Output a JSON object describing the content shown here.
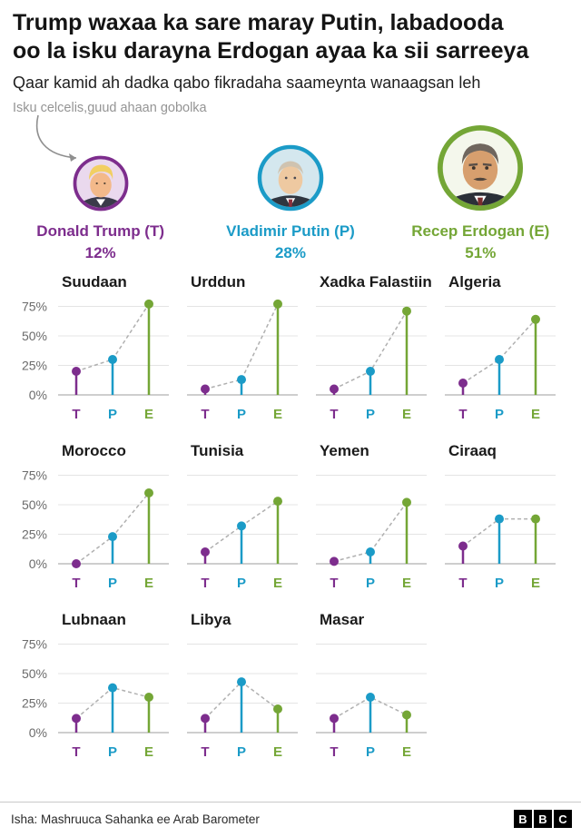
{
  "header": {
    "title_line1": "Trump waxaa ka sare maray Putin, labadooda",
    "title_line2": "oo la isku darayna Erdogan ayaa ka sii sarreeya",
    "subtitle": "Qaar kamid ah dadka qabo fikradaha saameynta wanaagsan leh",
    "annotation": "Isku celcelis,guud ahaan gobolka"
  },
  "leaders": [
    {
      "key": "T",
      "name": "Donald Trump (T)",
      "value": 12,
      "value_label": "12%",
      "color": "#7d2d8d"
    },
    {
      "key": "P",
      "name": "Vladimir Putin (P)",
      "value": 28,
      "value_label": "28%",
      "color": "#1b9bc7"
    },
    {
      "key": "E",
      "name": "Recep Erdogan (E)",
      "value": 51,
      "value_label": "51%",
      "color": "#74a636"
    }
  ],
  "chart_data": {
    "type": "lollipop-small-multiples",
    "description": "Percent with favourable views of each leader, by country",
    "categories": [
      "T",
      "P",
      "E"
    ],
    "category_colors": [
      "#7d2d8d",
      "#1b9bc7",
      "#74a636"
    ],
    "y_ticks": [
      "75%",
      "50%",
      "25%",
      "0%"
    ],
    "y_tick_values": [
      75,
      50,
      25,
      0
    ],
    "ylim": [
      0,
      85
    ],
    "grid": true,
    "regional_average": {
      "T": 12,
      "P": 28,
      "E": 51
    },
    "charts": [
      {
        "country": "Suudaan",
        "values": [
          20,
          30,
          77
        ]
      },
      {
        "country": "Urddun",
        "values": [
          5,
          13,
          77
        ]
      },
      {
        "country": "Xadka Falastiin",
        "values": [
          5,
          20,
          71
        ]
      },
      {
        "country": "Algeria",
        "values": [
          10,
          30,
          64
        ]
      },
      {
        "country": "Morocco",
        "values": [
          0,
          23,
          60
        ]
      },
      {
        "country": "Tunisia",
        "values": [
          10,
          32,
          53
        ]
      },
      {
        "country": "Yemen",
        "values": [
          2,
          10,
          52
        ]
      },
      {
        "country": "Ciraaq",
        "values": [
          15,
          38,
          38
        ]
      },
      {
        "country": "Lubnaan",
        "values": [
          12,
          38,
          30
        ]
      },
      {
        "country": "Libya",
        "values": [
          12,
          43,
          20
        ]
      },
      {
        "country": "Masar",
        "values": [
          12,
          30,
          15
        ]
      }
    ]
  },
  "footer": {
    "source": "Isha: Mashruuca Sahanka ee Arab Barometer",
    "logo_letters": [
      "B",
      "B",
      "C"
    ]
  }
}
